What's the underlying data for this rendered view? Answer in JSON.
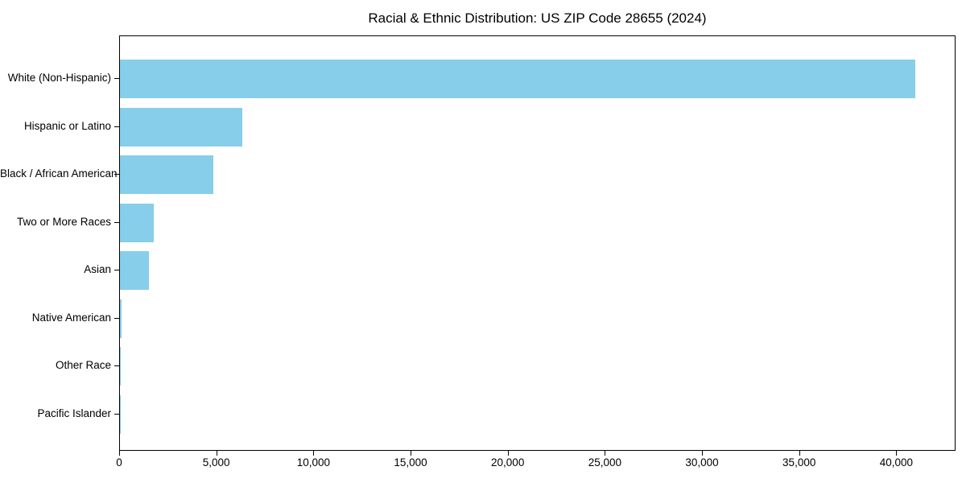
{
  "figure": {
    "background": "#ffffff"
  },
  "chart_data": {
    "type": "bar",
    "orientation": "horizontal",
    "title": "Racial & Ethnic Distribution: US ZIP Code 28655 (2024)",
    "categories": [
      "White (Non-Hispanic)",
      "Hispanic or Latino",
      "Black / African American",
      "Two or More Races",
      "Asian",
      "Native American",
      "Other Race",
      "Pacific Islander"
    ],
    "values": [
      41000,
      6300,
      4800,
      1750,
      1480,
      70,
      50,
      12
    ],
    "xlabel": "",
    "ylabel": "",
    "xlim": [
      0,
      43050
    ],
    "x_ticks": [
      0,
      5000,
      10000,
      15000,
      20000,
      25000,
      30000,
      35000,
      40000
    ],
    "x_tick_labels": [
      "0",
      "5,000",
      "10,000",
      "15,000",
      "20,000",
      "25,000",
      "30,000",
      "35,000",
      "40,000"
    ],
    "bar_color": "#87CEEB",
    "axis_color": "#000000",
    "text_color": "#000000",
    "grid": false,
    "legend": "none"
  }
}
